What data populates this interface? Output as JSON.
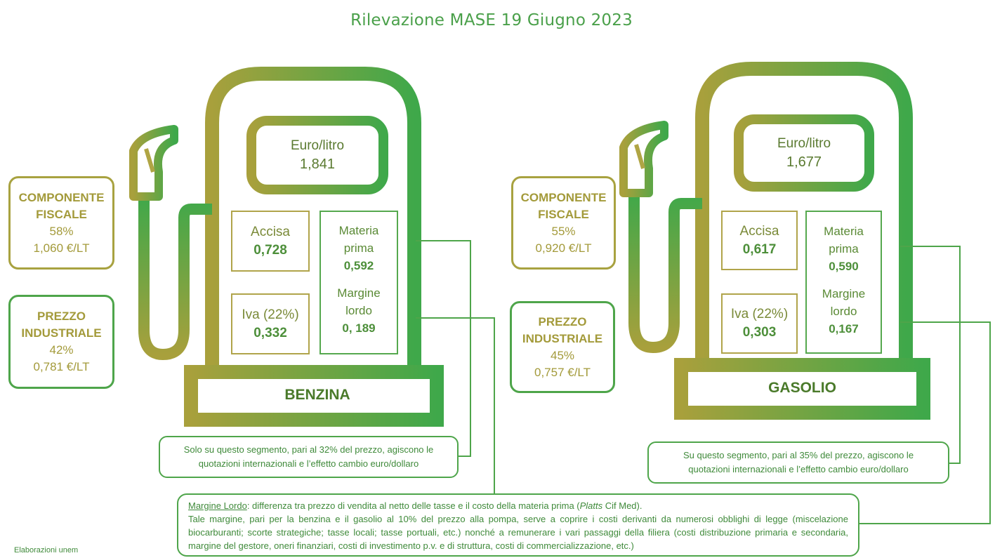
{
  "title": "Rilevazione MASE 19 Giugno 2023",
  "benzina": {
    "name": "BENZINA",
    "euro_label": "Euro/litro",
    "euro_value": "1,841",
    "accisa_label": "Accisa",
    "accisa_value": "0,728",
    "iva_label": "Iva (22%)",
    "iva_value": "0,332",
    "materia_label_1": "Materia",
    "materia_label_2": "prima",
    "materia_value": "0,592",
    "margine_label_1": "Margine",
    "margine_label_2": "lordo",
    "margine_value": "0, 189",
    "fiscale_title_1": "COMPONENTE",
    "fiscale_title_2": "FISCALE",
    "fiscale_pct": "58%",
    "fiscale_eur": "1,060 €/LT",
    "industriale_title_1": "PREZZO",
    "industriale_title_2": "INDUSTRIALE",
    "industriale_pct": "42%",
    "industriale_eur": "0,781 €/LT",
    "note_line_1": "Solo su questo segmento, pari al 32% del prezzo, agiscono le",
    "note_line_2": "quotazioni internazionali e l’effetto cambio euro/dollaro"
  },
  "gasolio": {
    "name": "GASOLIO",
    "euro_label": "Euro/litro",
    "euro_value": "1,677",
    "accisa_label": "Accisa",
    "accisa_value": "0,617",
    "iva_label": "Iva (22%)",
    "iva_value": "0,303",
    "materia_label_1": "Materia",
    "materia_label_2": "prima",
    "materia_value": "0,590",
    "margine_label_1": "Margine",
    "margine_label_2": "lordo",
    "margine_value": "0,167",
    "fiscale_title_1": "COMPONENTE",
    "fiscale_title_2": "FISCALE",
    "fiscale_pct": "55%",
    "fiscale_eur": "0,920 €/LT",
    "industriale_title_1": "PREZZO",
    "industriale_title_2": "INDUSTRIALE",
    "industriale_pct": "45%",
    "industriale_eur": "0,757 €/LT",
    "note_line_1": "Su questo segmento, pari al 35% del prezzo, agiscono le",
    "note_line_2": "quotazioni internazionali e l’effetto cambio euro/dollaro"
  },
  "margin_note": {
    "term": "Margine Lordo",
    "line_1_a": ": differenza tra prezzo di vendita al netto delle tasse e il costo della materia prima (",
    "line_1_italic": "Platts",
    "line_1_b": " Cif Med).",
    "body": "Tale margine, pari per la benzina e il gasolio al 10% del prezzo alla pompa, serve a coprire i costi derivanti da numerosi obblighi di legge (miscelazione biocarburanti; scorte strategiche; tasse locali; tasse portuali, etc.) nonché a remunerare i vari passaggi della filiera (costi distribuzione primaria e secondaria, margine del gestore, oneri finanziari, costi di investimento p.v. e di struttura, costi di commercializzazione, etc.)"
  },
  "footer": "Elaborazioni unem",
  "colors": {
    "olive": "#a8a240",
    "green": "#3fa84a"
  }
}
